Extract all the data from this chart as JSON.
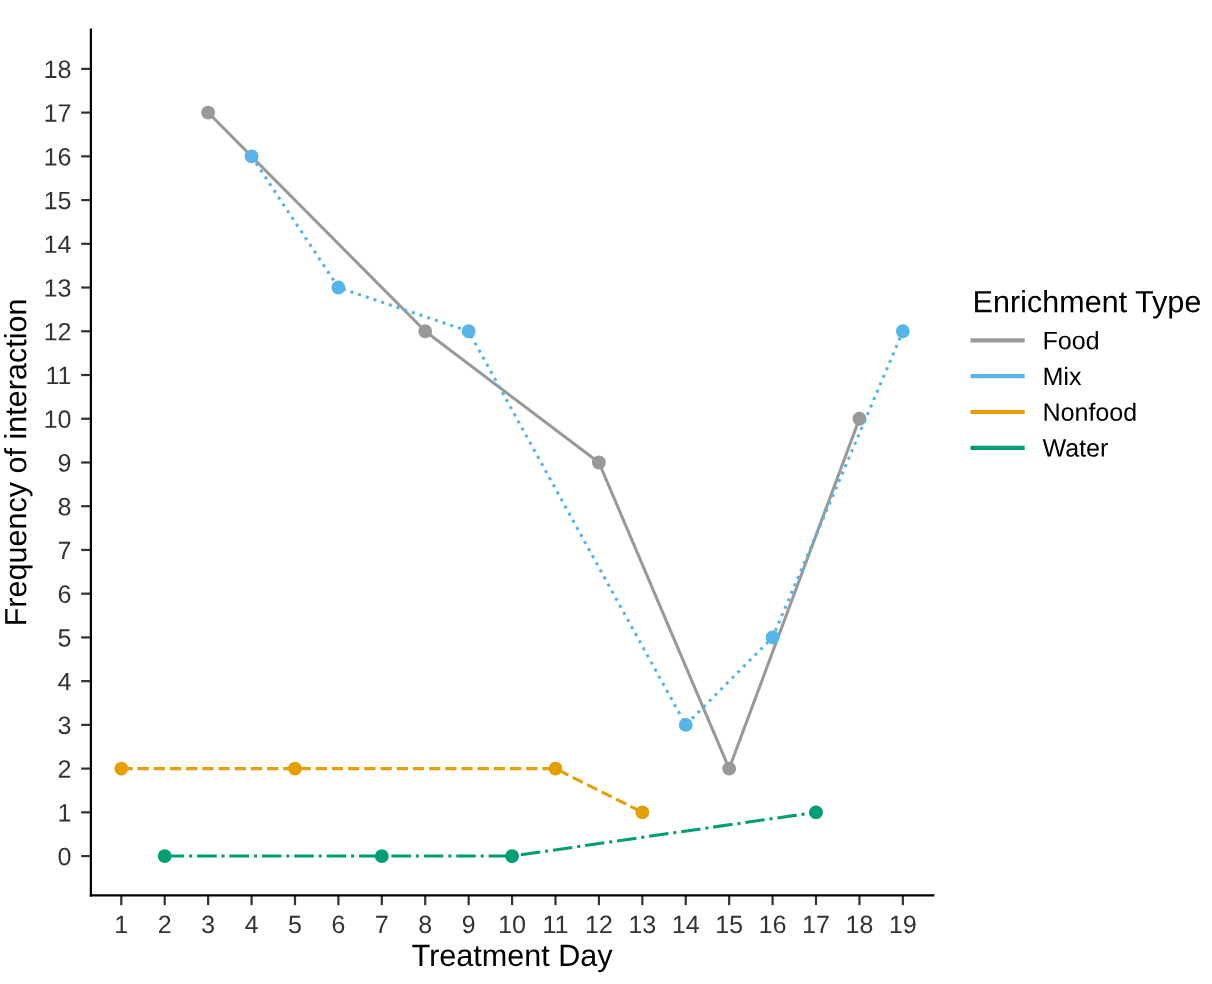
{
  "chart_data": {
    "type": "line",
    "xlabel": "Treatment Day",
    "ylabel": "Frequency of interaction",
    "legend_title": "Enrichment Type",
    "legend": "right",
    "marker": "circle",
    "grid": false,
    "xlim": [
      0.3,
      19.7
    ],
    "ylim": [
      -0.9,
      18.9
    ],
    "xticks": [
      1,
      2,
      3,
      4,
      5,
      6,
      7,
      8,
      9,
      10,
      11,
      12,
      13,
      14,
      15,
      16,
      17,
      18,
      19
    ],
    "yticks": [
      0,
      1,
      2,
      3,
      4,
      5,
      6,
      7,
      8,
      9,
      10,
      11,
      12,
      13,
      14,
      15,
      16,
      17,
      18
    ],
    "series": [
      {
        "name": "Food",
        "color": "#999999",
        "line_style": "solid",
        "x": [
          3,
          8,
          12,
          15,
          18
        ],
        "values": [
          17,
          12,
          9,
          2,
          10
        ]
      },
      {
        "name": "Mix",
        "color": "#56b4e9",
        "line_style": "dotted",
        "x": [
          4,
          6,
          9,
          14,
          16,
          19
        ],
        "values": [
          16,
          13,
          12,
          3,
          5,
          12
        ]
      },
      {
        "name": "Nonfood",
        "color": "#e69f00",
        "line_style": "dashed",
        "x": [
          1,
          5,
          11,
          13
        ],
        "values": [
          2,
          2,
          2,
          1
        ]
      },
      {
        "name": "Water",
        "color": "#009e73",
        "line_style": "dashdot",
        "x": [
          2,
          7,
          10,
          17
        ],
        "values": [
          0,
          0,
          0,
          1
        ]
      }
    ]
  }
}
